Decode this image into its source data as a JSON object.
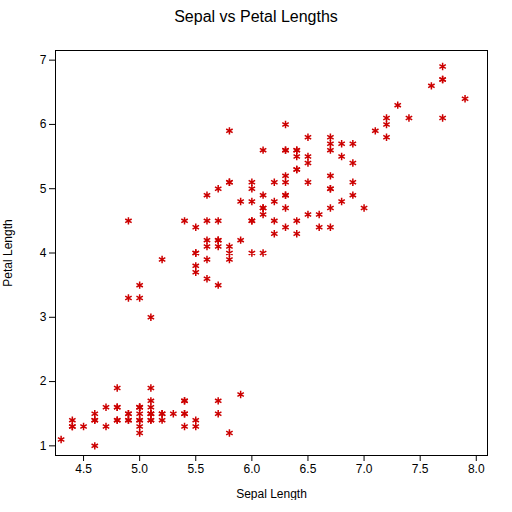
{
  "chart_data": {
    "type": "scatter",
    "title": "Sepal vs Petal Lengths",
    "xlabel": "Sepal Length",
    "ylabel": "Petal Length",
    "color": "#cc0000",
    "marker": "asterisk",
    "xlim": [
      4.25,
      8.1
    ],
    "ylim": [
      0.85,
      7.15
    ],
    "xticks": [
      4.5,
      {
        "value": 5.0,
        "label": "5.0"
      },
      5.5,
      {
        "value": 6.0,
        "label": "6.0"
      },
      6.5,
      {
        "value": 7.0,
        "label": "7.0"
      },
      7.5,
      {
        "value": 8.0,
        "label": "8.0"
      }
    ],
    "yticks": [
      1,
      2,
      3,
      4,
      5,
      6,
      7
    ],
    "x": [
      5.1,
      4.9,
      4.7,
      4.6,
      5.0,
      5.4,
      4.6,
      5.0,
      4.4,
      4.9,
      5.4,
      4.8,
      4.8,
      4.3,
      5.8,
      5.7,
      5.4,
      5.1,
      5.7,
      5.1,
      5.4,
      5.1,
      4.6,
      5.1,
      4.8,
      5.0,
      5.0,
      5.2,
      5.2,
      4.7,
      4.8,
      5.4,
      5.2,
      5.5,
      4.9,
      5.0,
      5.5,
      4.9,
      4.4,
      5.1,
      5.0,
      4.5,
      4.4,
      5.0,
      5.1,
      4.8,
      5.1,
      4.6,
      5.3,
      5.0,
      7.0,
      6.4,
      6.9,
      5.5,
      6.5,
      5.7,
      6.3,
      4.9,
      6.6,
      5.2,
      5.0,
      5.9,
      6.0,
      6.1,
      5.6,
      6.7,
      5.6,
      5.8,
      6.2,
      5.6,
      5.9,
      6.1,
      6.3,
      6.1,
      6.4,
      6.6,
      6.8,
      6.7,
      6.0,
      5.7,
      5.5,
      5.5,
      5.8,
      6.0,
      5.4,
      6.0,
      6.7,
      6.3,
      5.6,
      5.5,
      5.5,
      6.1,
      5.8,
      5.0,
      5.6,
      5.7,
      5.7,
      6.2,
      5.1,
      5.7,
      6.3,
      5.8,
      7.1,
      6.3,
      6.5,
      7.6,
      4.9,
      7.3,
      6.7,
      7.2,
      6.5,
      6.4,
      6.8,
      5.7,
      5.8,
      6.4,
      6.5,
      7.7,
      7.7,
      6.0,
      6.9,
      5.6,
      7.7,
      6.3,
      6.7,
      7.2,
      6.2,
      6.1,
      6.4,
      7.2,
      7.4,
      7.9,
      6.4,
      6.3,
      6.1,
      7.7,
      6.3,
      6.4,
      6.0,
      6.9,
      6.7,
      6.9,
      5.8,
      6.8,
      6.7,
      6.7,
      6.3,
      6.5,
      6.2,
      5.9
    ],
    "values": [
      1.4,
      1.4,
      1.3,
      1.5,
      1.4,
      1.7,
      1.4,
      1.5,
      1.4,
      1.5,
      1.5,
      1.6,
      1.4,
      1.1,
      1.2,
      1.5,
      1.3,
      1.4,
      1.7,
      1.5,
      1.7,
      1.5,
      1.0,
      1.7,
      1.9,
      1.6,
      1.6,
      1.5,
      1.4,
      1.6,
      1.6,
      1.5,
      1.5,
      1.4,
      1.5,
      1.2,
      1.3,
      1.4,
      1.3,
      1.5,
      1.3,
      1.3,
      1.3,
      1.6,
      1.9,
      1.4,
      1.6,
      1.4,
      1.5,
      1.4,
      4.7,
      4.5,
      4.9,
      4.0,
      4.6,
      4.5,
      4.7,
      3.3,
      4.6,
      3.9,
      3.5,
      4.2,
      4.0,
      4.7,
      3.6,
      4.4,
      4.5,
      4.1,
      4.5,
      3.9,
      4.8,
      4.0,
      4.9,
      4.7,
      4.3,
      4.4,
      4.8,
      5.0,
      4.5,
      3.5,
      3.8,
      3.7,
      3.9,
      5.1,
      4.5,
      4.5,
      4.7,
      4.4,
      4.1,
      4.0,
      4.4,
      4.6,
      4.0,
      3.3,
      4.2,
      4.2,
      4.2,
      4.3,
      3.0,
      4.1,
      6.0,
      5.1,
      5.9,
      5.6,
      5.8,
      6.6,
      4.5,
      6.3,
      5.8,
      6.1,
      5.1,
      5.3,
      5.5,
      5.0,
      5.1,
      5.3,
      5.5,
      6.7,
      6.9,
      5.0,
      5.7,
      4.9,
      6.7,
      4.9,
      5.7,
      6.0,
      4.8,
      4.9,
      5.6,
      5.8,
      6.1,
      6.4,
      5.6,
      5.1,
      5.6,
      6.1,
      5.6,
      5.5,
      4.8,
      5.4,
      5.6,
      5.1,
      5.9,
      5.7,
      5.2,
      5.0,
      5.2,
      5.4,
      5.1,
      1.8
    ]
  }
}
